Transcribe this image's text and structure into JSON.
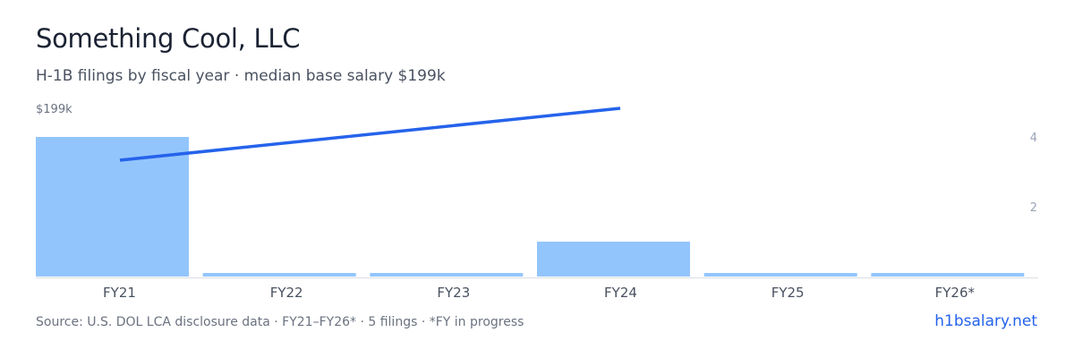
{
  "header": {
    "title": "Something Cool, LLC",
    "subtitle": "H-1B filings by fiscal year · median base salary $199k"
  },
  "chart_data": {
    "type": "bar",
    "categories": [
      "FY21",
      "FY22",
      "FY23",
      "FY24",
      "FY25",
      "FY26*"
    ],
    "series": [
      {
        "kind": "bar",
        "axis": "right",
        "values": [
          4,
          0,
          0,
          1,
          0,
          0
        ],
        "color": "#93c5fd"
      },
      {
        "kind": "line",
        "axis": "left",
        "values": [
          null,
          null,
          null,
          null,
          null,
          null
        ],
        "color": "#2563eb"
      }
    ],
    "line_points": [
      {
        "category": "FY21",
        "value": 199
      },
      {
        "category": "FY24",
        "value": 199
      }
    ],
    "left_axis": {
      "ticks": [
        "$199k"
      ]
    },
    "right_axis": {
      "ticks": [
        "4",
        "2"
      ],
      "ylim": [
        0,
        5
      ]
    },
    "grid": false,
    "legend": "none"
  },
  "footer": {
    "source": "Source: U.S. DOL LCA disclosure data · FY21–FY26* · 5 filings · *FY in progress",
    "link": "h1bsalary.net"
  },
  "colors": {
    "bar": "#93c5fd",
    "line": "#2563eb",
    "axis_text": "#6b7280",
    "right_tick": "#9aa3b8",
    "baseline": "#d9dde3"
  }
}
